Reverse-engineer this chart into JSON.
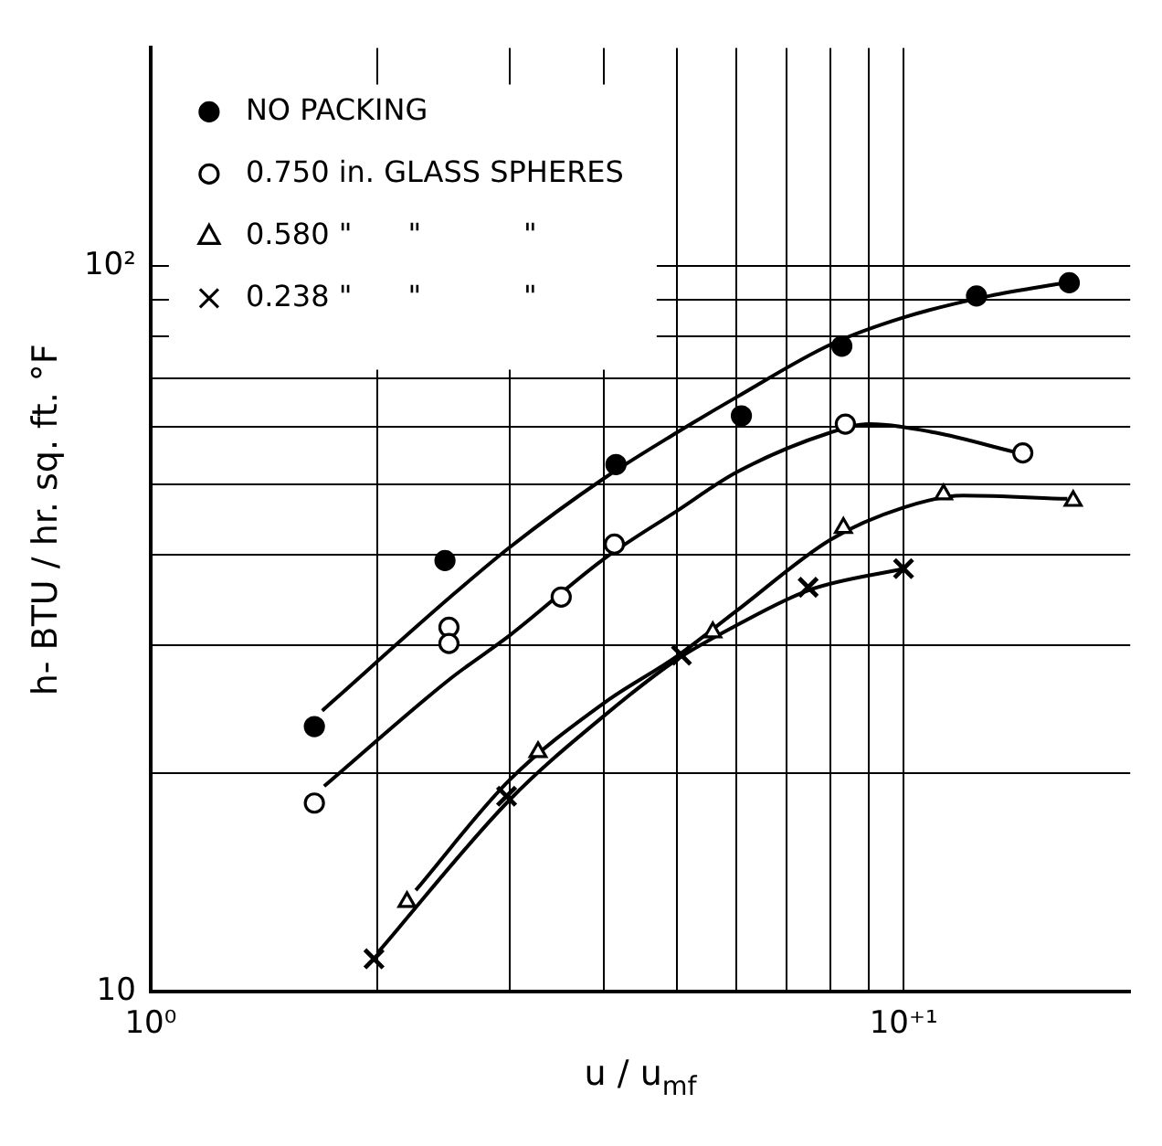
{
  "chart_data": {
    "type": "scatter",
    "xlabel": "u / u$_{mf}$",
    "ylabel": "h- BTU / hr. sq. ft. °F",
    "log": "xy",
    "grid": true,
    "legend": "top left",
    "xlim": [
      1,
      20
    ],
    "ylim": [
      10,
      200
    ],
    "xticks": [
      {
        "value": 1,
        "label": "10⁰"
      },
      {
        "value": 2,
        "label": null
      },
      {
        "value": 3,
        "label": null
      },
      {
        "value": 4,
        "label": null
      },
      {
        "value": 5,
        "label": null
      },
      {
        "value": 6,
        "label": null
      },
      {
        "value": 7,
        "label": null
      },
      {
        "value": 8,
        "label": null
      },
      {
        "value": 9,
        "label": null
      },
      {
        "value": 10,
        "label": "10⁺¹"
      }
    ],
    "yticks": [
      10,
      {
        "value": 20,
        "label": null
      },
      {
        "value": 30,
        "label": null
      },
      {
        "value": 40,
        "label": null
      },
      {
        "value": 50,
        "label": null
      },
      {
        "value": 60,
        "label": null
      },
      {
        "value": 70,
        "label": null
      },
      {
        "value": 80,
        "label": null
      },
      {
        "value": 90,
        "label": null
      },
      {
        "value": 100,
        "label": "10²"
      }
    ],
    "series": [
      {
        "name": "NO PACKING",
        "type": "scatter",
        "marker": "circle",
        "color": "#000000",
        "x": [
          1.65,
          2.46,
          4.15,
          6.09,
          8.28,
          12.5,
          16.6
        ],
        "values": [
          23.2,
          39.3,
          53.3,
          62.2,
          77.6,
          91,
          94.9
        ]
      },
      {
        "name": "0.750 in. GLASS SPHERES",
        "type": "scatter",
        "marker": "circle",
        "color": "#000000",
        "x": [
          1.65,
          2.49,
          2.49,
          3.51,
          4.13,
          8.37,
          14.4
        ],
        "values": [
          18.2,
          31.8,
          30.2,
          35.0,
          41.4,
          60.6,
          55.3
        ]
      },
      {
        "name": "0.580 \"      \"           \"",
        "type": "scatter",
        "marker": "triangle",
        "color": "#000000",
        "x": [
          2.19,
          3.27,
          5.58,
          8.32,
          11.3,
          16.8
        ],
        "values": [
          13.3,
          21.4,
          31.3,
          43.6,
          48.5,
          47.5
        ]
      },
      {
        "name": "0.238 \"      \"           \"",
        "type": "scatter",
        "marker": "cross",
        "color": "#000000",
        "x": [
          1.98,
          2.97,
          5.07,
          7.47,
          10
        ],
        "values": [
          11.1,
          18.6,
          29.1,
          36.1,
          38.3
        ]
      },
      {
        "type": "line",
        "marker": "none",
        "color": "#000000",
        "x": [
          1.69,
          2.5,
          3,
          4,
          5,
          6,
          8,
          10,
          13,
          16.5
        ],
        "values": [
          24.4,
          35,
          41,
          51,
          59,
          66,
          78,
          85,
          91,
          95
        ]
      },
      {
        "type": "line",
        "marker": "none",
        "color": "#000000",
        "x": [
          1.7,
          2.5,
          3,
          4,
          5,
          6,
          8,
          9,
          11,
          14
        ],
        "values": [
          19.2,
          27,
          31,
          39.5,
          46,
          52,
          59,
          60.6,
          59,
          55.5
        ]
      },
      {
        "type": "line",
        "marker": "none",
        "color": "#000000",
        "x": [
          2.25,
          3,
          4,
          5,
          6,
          8,
          10,
          12,
          16.5
        ],
        "values": [
          13.8,
          19.6,
          25,
          29,
          33.5,
          42,
          46.5,
          48.3,
          47.8
        ]
      },
      {
        "type": "line",
        "marker": "none",
        "color": "#000000",
        "x": [
          2,
          3,
          4,
          5,
          6,
          7.5,
          10
        ],
        "values": [
          11.3,
          18.4,
          24,
          28.7,
          32,
          35.8,
          38.3
        ]
      }
    ]
  }
}
